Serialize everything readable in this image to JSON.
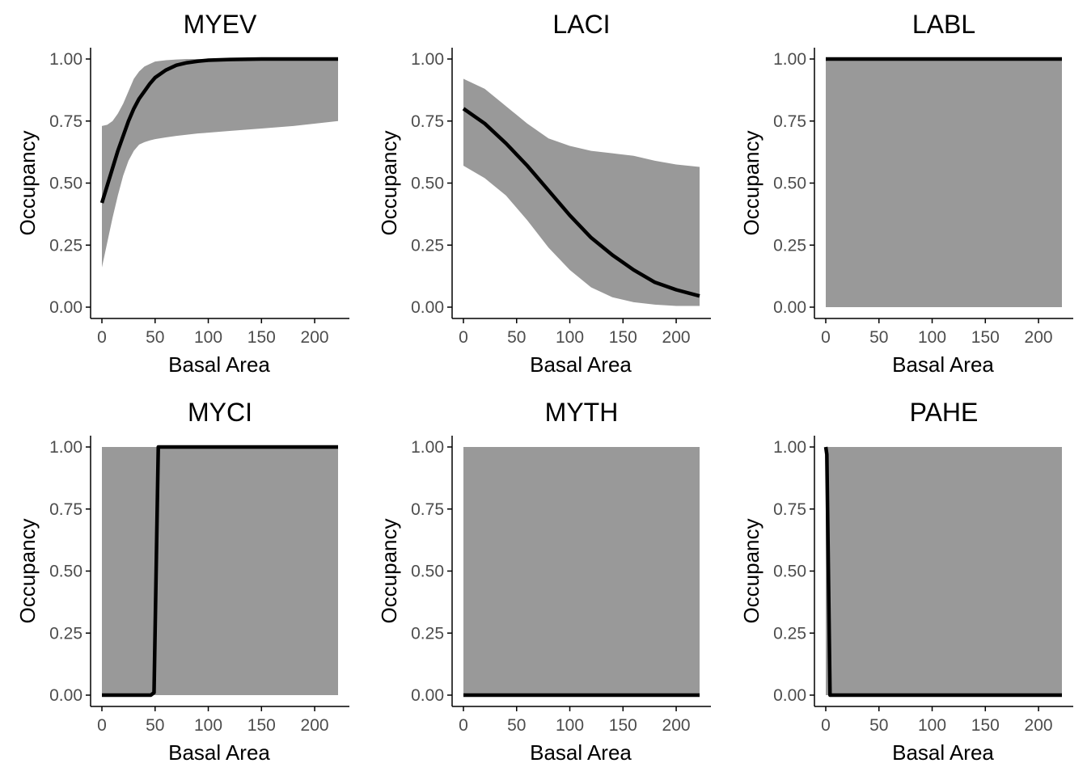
{
  "colors": {
    "band": "#999999",
    "line": "#000000",
    "axis": "#000000",
    "tick_text": "#4d4d4d",
    "background": "#ffffff"
  },
  "chart_data": [
    {
      "type": "area",
      "title": "MYEV",
      "xlabel": "Basal Area",
      "ylabel": "Occupancy",
      "xlim": [
        0,
        222
      ],
      "ylim": [
        0,
        1
      ],
      "xticks": [
        "0",
        "50",
        "100",
        "150",
        "200"
      ],
      "yticks": [
        "0.00",
        "0.25",
        "0.50",
        "0.75",
        "1.00"
      ],
      "series": [
        {
          "x": [
            0,
            5,
            10,
            15,
            20,
            25,
            30,
            35,
            40,
            45,
            50,
            60,
            70,
            80,
            90,
            100,
            120,
            150,
            180,
            222
          ],
          "estimate": [
            0.42,
            0.49,
            0.56,
            0.63,
            0.69,
            0.75,
            0.8,
            0.84,
            0.87,
            0.9,
            0.925,
            0.955,
            0.975,
            0.985,
            0.991,
            0.995,
            0.998,
            1.0,
            1.0,
            1.0
          ],
          "lower": [
            0.16,
            0.26,
            0.36,
            0.45,
            0.53,
            0.59,
            0.63,
            0.655,
            0.665,
            0.672,
            0.677,
            0.684,
            0.69,
            0.695,
            0.7,
            0.703,
            0.71,
            0.72,
            0.73,
            0.75
          ],
          "upper": [
            0.73,
            0.735,
            0.75,
            0.78,
            0.82,
            0.87,
            0.92,
            0.95,
            0.97,
            0.98,
            0.99,
            0.995,
            0.998,
            1.0,
            1.0,
            1.0,
            1.0,
            1.0,
            1.0,
            1.0
          ]
        }
      ]
    },
    {
      "type": "area",
      "title": "LACI",
      "xlabel": "Basal Area",
      "ylabel": "Occupancy",
      "xlim": [
        0,
        222
      ],
      "ylim": [
        0,
        1
      ],
      "xticks": [
        "0",
        "50",
        "100",
        "150",
        "200"
      ],
      "yticks": [
        "0.00",
        "0.25",
        "0.50",
        "0.75",
        "1.00"
      ],
      "series": [
        {
          "x": [
            0,
            20,
            40,
            60,
            80,
            100,
            120,
            140,
            160,
            180,
            200,
            222
          ],
          "estimate": [
            0.8,
            0.74,
            0.66,
            0.57,
            0.47,
            0.37,
            0.28,
            0.21,
            0.15,
            0.1,
            0.07,
            0.045
          ],
          "lower": [
            0.57,
            0.52,
            0.45,
            0.35,
            0.24,
            0.15,
            0.08,
            0.04,
            0.02,
            0.01,
            0.005,
            0.005
          ],
          "upper": [
            0.92,
            0.88,
            0.81,
            0.74,
            0.68,
            0.65,
            0.63,
            0.62,
            0.61,
            0.59,
            0.575,
            0.565
          ]
        }
      ]
    },
    {
      "type": "area",
      "title": "LABL",
      "xlabel": "Basal Area",
      "ylabel": "Occupancy",
      "xlim": [
        0,
        222
      ],
      "ylim": [
        0,
        1
      ],
      "xticks": [
        "0",
        "50",
        "100",
        "150",
        "200"
      ],
      "yticks": [
        "0.00",
        "0.25",
        "0.50",
        "0.75",
        "1.00"
      ],
      "series": [
        {
          "x": [
            0,
            222
          ],
          "estimate": [
            1.0,
            1.0
          ],
          "lower": [
            0.0,
            0.0
          ],
          "upper": [
            1.0,
            1.0
          ]
        }
      ]
    },
    {
      "type": "area",
      "title": "MYCI",
      "xlabel": "Basal Area",
      "ylabel": "Occupancy",
      "xlim": [
        0,
        222
      ],
      "ylim": [
        0,
        1
      ],
      "xticks": [
        "0",
        "50",
        "100",
        "150",
        "200"
      ],
      "yticks": [
        "0.00",
        "0.25",
        "0.50",
        "0.75",
        "1.00"
      ],
      "series": [
        {
          "x": [
            0,
            46,
            49,
            53,
            222
          ],
          "estimate": [
            0.0,
            0.0,
            0.01,
            1.0,
            1.0
          ],
          "lower": [
            0.0,
            0.0,
            0.0,
            0.0,
            0.0
          ],
          "upper": [
            1.0,
            1.0,
            1.0,
            1.0,
            1.0
          ]
        }
      ]
    },
    {
      "type": "area",
      "title": "MYTH",
      "xlabel": "Basal Area",
      "ylabel": "Occupancy",
      "xlim": [
        0,
        222
      ],
      "ylim": [
        0,
        1
      ],
      "xticks": [
        "0",
        "50",
        "100",
        "150",
        "200"
      ],
      "yticks": [
        "0.00",
        "0.25",
        "0.50",
        "0.75",
        "1.00"
      ],
      "series": [
        {
          "x": [
            0,
            222
          ],
          "estimate": [
            0.0,
            0.0
          ],
          "lower": [
            0.0,
            0.0
          ],
          "upper": [
            1.0,
            1.0
          ]
        }
      ]
    },
    {
      "type": "area",
      "title": "PAHE",
      "xlabel": "Basal Area",
      "ylabel": "Occupancy",
      "xlim": [
        0,
        222
      ],
      "ylim": [
        0,
        1
      ],
      "xticks": [
        "0",
        "50",
        "100",
        "150",
        "200"
      ],
      "yticks": [
        "0.00",
        "0.25",
        "0.50",
        "0.75",
        "1.00"
      ],
      "series": [
        {
          "x": [
            0,
            1,
            4,
            222
          ],
          "estimate": [
            1.0,
            0.97,
            0.0,
            0.0
          ],
          "lower": [
            0.0,
            0.0,
            0.0,
            0.0
          ],
          "upper": [
            1.0,
            1.0,
            1.0,
            1.0
          ]
        }
      ]
    }
  ]
}
